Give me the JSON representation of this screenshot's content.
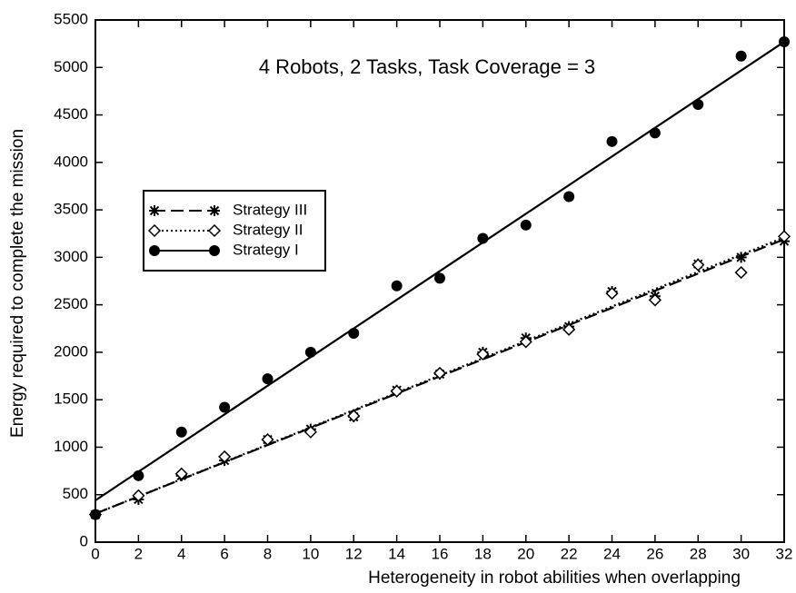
{
  "chart_data": {
    "type": "scatter",
    "title": "4 Robots, 2 Tasks, Task Coverage = 3",
    "x_label": "Heterogeneity in robot abilities when overlapping",
    "y_label": "Energy required to complete the mission",
    "x": [
      0,
      2,
      4,
      6,
      8,
      10,
      12,
      14,
      16,
      18,
      20,
      22,
      24,
      26,
      28,
      30,
      32
    ],
    "series": [
      {
        "name": "Strategy III",
        "color": "#000000",
        "marker": "asterisk",
        "line_style": "dashed",
        "values": [
          290,
          450,
          700,
          860,
          1080,
          1190,
          1320,
          1600,
          1770,
          2000,
          2150,
          2270,
          2640,
          2590,
          2930,
          3000,
          3170
        ],
        "fit_line": {
          "x": [
            0,
            32
          ],
          "values": [
            300,
            3190
          ]
        }
      },
      {
        "name": "Strategy II",
        "color": "#000000",
        "marker": "diamond",
        "line_style": "dotted",
        "values": [
          290,
          490,
          720,
          900,
          1080,
          1160,
          1330,
          1590,
          1780,
          1980,
          2110,
          2240,
          2620,
          2550,
          2920,
          2840,
          3220
        ],
        "fit_line": {
          "x": [
            0,
            32
          ],
          "values": [
            300,
            3210
          ]
        }
      },
      {
        "name": "Strategy I",
        "color": "#000000",
        "marker": "circle",
        "line_style": "solid",
        "values": [
          290,
          700,
          1160,
          1420,
          1720,
          2000,
          2200,
          2700,
          2780,
          3200,
          3340,
          3640,
          4220,
          4310,
          4610,
          5120,
          5270
        ],
        "fit_line": {
          "x": [
            0,
            32
          ],
          "values": [
            440,
            5270
          ]
        }
      }
    ],
    "xlim": [
      0,
      32
    ],
    "ylim": [
      0,
      5500
    ],
    "xticks": [
      0,
      2,
      4,
      6,
      8,
      10,
      12,
      14,
      16,
      18,
      20,
      22,
      24,
      26,
      28,
      30,
      32
    ],
    "yticks": [
      0,
      500,
      1000,
      1500,
      2000,
      2500,
      3000,
      3500,
      4000,
      4500,
      5000,
      5500
    ],
    "legend": "upper left",
    "grid": false
  }
}
